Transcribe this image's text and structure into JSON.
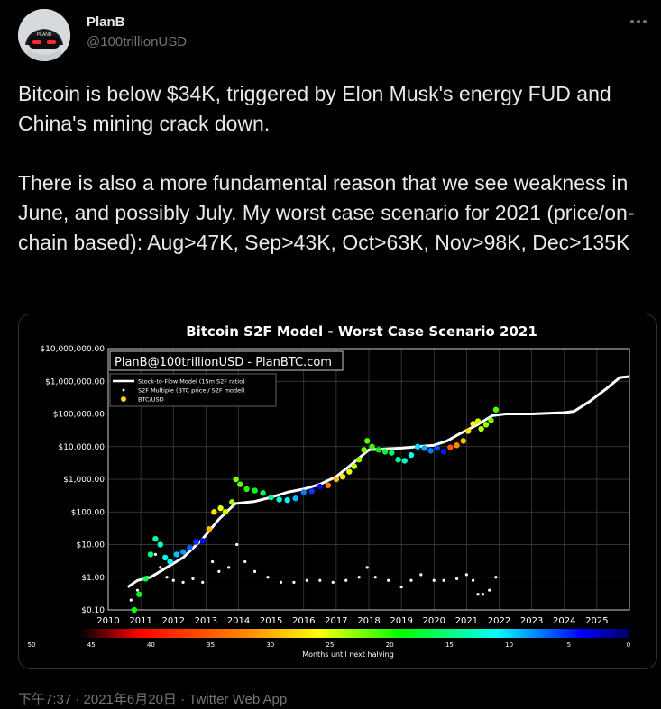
{
  "user": {
    "display_name": "PlanB",
    "handle": "@100trillionUSD"
  },
  "tweet": {
    "text": "Bitcoin is below $34K, triggered by Elon Musk's energy FUD and China's mining crack down.\n\nThere is also a more fundamental reason that we see weakness in June, and possibly July. My worst case scenario for 2021 (price/on-chain based): Aug>47K, Sep>43K, Oct>63K, Nov>98K, Dec>135K",
    "timestamp": "下午7:37 · 2021年6月20日 · Twitter Web App"
  },
  "avatar": {
    "label": "PLANB"
  },
  "icons": {
    "more": "more-horizontal-icon"
  },
  "chart_data": {
    "type": "scatter",
    "title": "Bitcoin S2F Model - Worst Case Scenario 2021",
    "watermark": "PlanB@100trillionUSD - PlanBTC.com",
    "y_scale": "log",
    "ylim": [
      0.1,
      10000000
    ],
    "y_ticks": [
      "$10,000,000.00",
      "$1,000,000.00",
      "$100,000.00",
      "$10,000.00",
      "$1,000.00",
      "$100.00",
      "$10.00",
      "$1.00",
      "$0.10"
    ],
    "xlim": [
      2010,
      2026
    ],
    "x_ticks": [
      "2010",
      "2011",
      "2012",
      "2013",
      "2014",
      "2015",
      "2016",
      "2017",
      "2018",
      "2019",
      "2020",
      "2021",
      "2022",
      "2023",
      "2024",
      "2025"
    ],
    "grid": true,
    "legend": {
      "position": "top-left",
      "entries": [
        "Stock-to-Flow Model (15m S2F ratio)",
        "S2F Multiple (BTC price / S2F model)",
        "BTC/USD"
      ]
    },
    "colorbar": {
      "label": "Months until next halving",
      "ticks": [
        "50",
        "45",
        "40",
        "35",
        "30",
        "25",
        "20",
        "15",
        "10",
        "5",
        "0"
      ],
      "min": 50,
      "max": 0
    },
    "colors": {
      "model": "#ffffff",
      "multiple": "#ffffff",
      "background": "#000000",
      "grid": "#444444"
    },
    "series": [
      {
        "name": "Stock-to-Flow Model (15m S2F ratio)",
        "x": [
          2010.6,
          2010.9,
          2011.3,
          2011.8,
          2012.3,
          2012.9,
          2013.4,
          2013.9,
          2014.5,
          2015.0,
          2015.5,
          2016.0,
          2016.5,
          2017.0,
          2017.5,
          2018.0,
          2018.5,
          2019.0,
          2019.5,
          2020.0,
          2020.4,
          2020.8,
          2021.3,
          2021.8,
          2022.2,
          2023.0,
          2024.0,
          2024.3,
          2024.8,
          2025.3,
          2025.7,
          2026.0
        ],
        "y": [
          0.5,
          0.8,
          1.0,
          2.0,
          4.0,
          15,
          60,
          180,
          210,
          280,
          400,
          500,
          700,
          1200,
          3000,
          8000,
          8500,
          9000,
          10000,
          11000,
          15000,
          25000,
          45000,
          90000,
          100000,
          100000,
          110000,
          120000,
          250000,
          600000,
          1300000,
          1400000
        ]
      },
      {
        "name": "S2F Multiple (BTC price / S2F model)",
        "x": [
          2010.7,
          2010.9,
          2011.2,
          2011.45,
          2011.6,
          2011.8,
          2012.0,
          2012.3,
          2012.6,
          2012.9,
          2013.2,
          2013.4,
          2013.7,
          2013.95,
          2014.2,
          2014.5,
          2014.9,
          2015.3,
          2015.7,
          2016.1,
          2016.5,
          2016.9,
          2017.3,
          2017.7,
          2017.95,
          2018.2,
          2018.6,
          2019.0,
          2019.3,
          2019.6,
          2020.0,
          2020.3,
          2020.7,
          2021.0,
          2021.2,
          2021.35,
          2021.5,
          2021.7,
          2021.9
        ],
        "y": [
          0.2,
          0.4,
          1.0,
          5.0,
          2.0,
          1.0,
          0.8,
          0.7,
          0.9,
          0.7,
          3.0,
          1.5,
          2.0,
          10.0,
          3.0,
          1.5,
          1.0,
          0.7,
          0.7,
          0.8,
          0.8,
          0.7,
          0.8,
          1.0,
          2.0,
          1.0,
          0.8,
          0.5,
          0.8,
          1.2,
          0.8,
          0.8,
          0.9,
          1.2,
          0.8,
          0.3,
          0.3,
          0.4,
          1.0
        ]
      },
      {
        "name": "BTC/USD",
        "x": [
          2010.8,
          2010.95,
          2011.15,
          2011.3,
          2011.45,
          2011.6,
          2011.75,
          2011.9,
          2012.1,
          2012.3,
          2012.5,
          2012.7,
          2012.9,
          2013.1,
          2013.25,
          2013.45,
          2013.6,
          2013.8,
          2013.92,
          2014.05,
          2014.25,
          2014.5,
          2014.75,
          2015.0,
          2015.25,
          2015.5,
          2015.75,
          2016.0,
          2016.25,
          2016.5,
          2016.75,
          2017.0,
          2017.2,
          2017.4,
          2017.55,
          2017.7,
          2017.85,
          2017.95,
          2018.1,
          2018.3,
          2018.5,
          2018.7,
          2018.9,
          2019.1,
          2019.3,
          2019.5,
          2019.7,
          2019.9,
          2020.1,
          2020.3,
          2020.5,
          2020.7,
          2020.9,
          2021.05,
          2021.2,
          2021.35,
          2021.45,
          2021.6,
          2021.75,
          2021.9
        ],
        "y": [
          0.1,
          0.3,
          0.9,
          5.0,
          15.0,
          10.0,
          4.0,
          3.0,
          5.0,
          6.0,
          8.0,
          12.0,
          13.0,
          30.0,
          100.0,
          130.0,
          100.0,
          200.0,
          1000.0,
          700.0,
          500.0,
          450.0,
          380.0,
          280.0,
          240.0,
          230.0,
          260.0,
          400.0,
          430.0,
          600.0,
          650.0,
          1000.0,
          1200.0,
          1700.0,
          2500.0,
          4000.0,
          8000.0,
          15000.0,
          10000.0,
          8000.0,
          7000.0,
          6500.0,
          4000.0,
          3700.0,
          5500.0,
          10000.0,
          9000.0,
          7500.0,
          9000.0,
          7000.0,
          9500.0,
          11000.0,
          15000.0,
          30000.0,
          50000.0,
          60000.0,
          35000.0,
          47000.0,
          63000.0,
          135000.0
        ]
      }
    ]
  }
}
